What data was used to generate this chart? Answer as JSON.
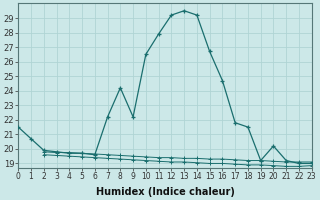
{
  "title": "",
  "xlabel": "Humidex (Indice chaleur)",
  "ylabel": "",
  "bg_color": "#cce8e8",
  "line_color": "#1a6e6e",
  "grid_color": "#b0d4d4",
  "x_main": [
    0,
    1,
    2,
    3,
    4,
    5,
    6,
    7,
    8,
    9,
    10,
    11,
    12,
    13,
    14,
    15,
    16,
    17,
    18,
    19,
    20,
    21,
    22,
    23
  ],
  "y_main": [
    21.5,
    20.7,
    19.9,
    19.8,
    19.7,
    19.7,
    19.6,
    22.2,
    24.2,
    22.2,
    26.5,
    27.9,
    29.2,
    29.5,
    29.2,
    26.7,
    24.7,
    21.8,
    21.5,
    19.2,
    20.2,
    19.2,
    19.0,
    19.0
  ],
  "x_flat1": [
    2,
    3,
    4,
    5,
    6,
    7,
    8,
    9,
    10,
    11,
    12,
    13,
    14,
    15,
    16,
    17,
    18,
    19,
    20,
    21,
    22,
    23
  ],
  "y_flat1": [
    19.8,
    19.75,
    19.75,
    19.7,
    19.65,
    19.6,
    19.55,
    19.5,
    19.45,
    19.4,
    19.4,
    19.35,
    19.35,
    19.3,
    19.3,
    19.25,
    19.2,
    19.2,
    19.15,
    19.1,
    19.1,
    19.1
  ],
  "x_flat2": [
    2,
    3,
    4,
    5,
    6,
    7,
    8,
    9,
    10,
    11,
    12,
    13,
    14,
    15,
    16,
    17,
    18,
    19,
    20,
    21,
    22,
    23
  ],
  "y_flat2": [
    19.6,
    19.55,
    19.5,
    19.45,
    19.4,
    19.35,
    19.3,
    19.25,
    19.2,
    19.15,
    19.1,
    19.1,
    19.05,
    19.0,
    19.0,
    18.95,
    18.9,
    18.9,
    18.85,
    18.8,
    18.8,
    18.85
  ],
  "xlim": [
    0,
    23
  ],
  "ylim": [
    18.7,
    30.0
  ],
  "yticks": [
    19,
    20,
    21,
    22,
    23,
    24,
    25,
    26,
    27,
    28,
    29
  ],
  "xticks": [
    0,
    1,
    2,
    3,
    4,
    5,
    6,
    7,
    8,
    9,
    10,
    11,
    12,
    13,
    14,
    15,
    16,
    17,
    18,
    19,
    20,
    21,
    22,
    23
  ],
  "xlabel_fontsize": 7,
  "tick_fontsize": 5.5,
  "ytick_fontsize": 6
}
